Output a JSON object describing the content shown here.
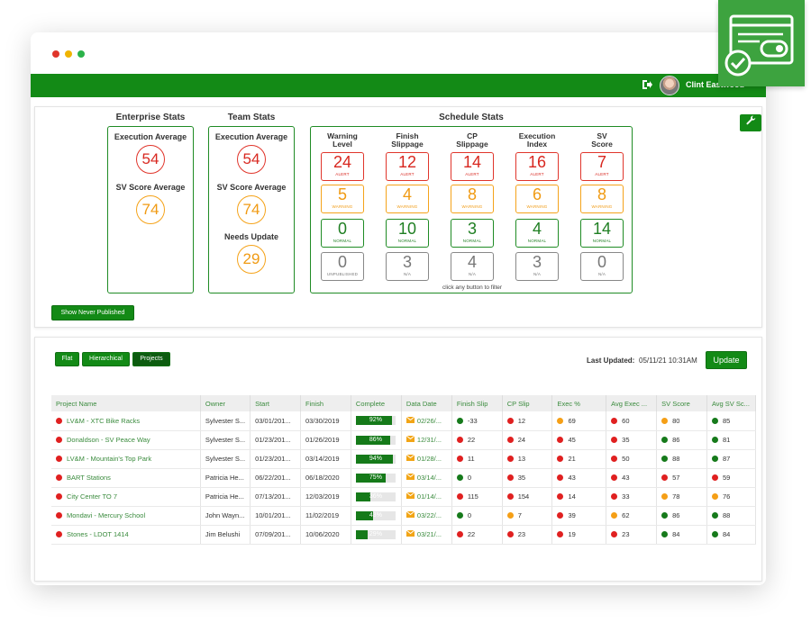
{
  "header": {
    "user_name": "Clint Eastwood"
  },
  "enterprise": {
    "title": "Enterprise Stats",
    "exec_label": "Execution Average",
    "exec_value": "54",
    "sv_label": "SV Score Average",
    "sv_value": "74"
  },
  "team": {
    "title": "Team Stats",
    "exec_label": "Execution Average",
    "exec_value": "54",
    "sv_label": "SV Score Average",
    "sv_value": "74",
    "needs_label": "Needs Update",
    "needs_value": "29"
  },
  "schedule": {
    "title": "Schedule Stats",
    "columns": [
      "Warning\nLevel",
      "Finish\nSlippage",
      "CP\nSlippage",
      "Execution\nIndex",
      "SV\nScore"
    ],
    "rows": [
      {
        "tag": "ALERT",
        "values": [
          "24",
          "12",
          "14",
          "16",
          "7"
        ]
      },
      {
        "tag": "WARNING",
        "values": [
          "5",
          "4",
          "8",
          "6",
          "8"
        ]
      },
      {
        "tag": "NORMAL",
        "values": [
          "0",
          "10",
          "3",
          "4",
          "14"
        ]
      },
      {
        "tag_first": "UNPUBLISHED",
        "tag": "N/A",
        "values": [
          "0",
          "3",
          "4",
          "3",
          "0"
        ]
      }
    ],
    "hint": "click any button to filter"
  },
  "buttons": {
    "never_published": "Show Never Published",
    "flat": "Flat",
    "hierarchical": "Hierarchical",
    "projects": "Projects",
    "update": "Update"
  },
  "last_updated": {
    "label": "Last Updated:",
    "value": "05/11/21 10:31AM"
  },
  "table": {
    "headers": [
      "Project Name",
      "Owner",
      "Start",
      "Finish",
      "Complete",
      "Data Date",
      "Finish Slip",
      "CP Slip",
      "Exec %",
      "Avg Exec ...",
      "SV Score",
      "Avg SV Sc..."
    ],
    "rows": [
      {
        "status": "red",
        "name": "LV&M - XTC Bike Racks",
        "owner": "Sylvester S...",
        "start": "03/01/201...",
        "finish": "03/30/2019",
        "complete": 92,
        "data_date": "02/26/...",
        "finish_slip": {
          "c": "green",
          "v": "-33"
        },
        "cp_slip": {
          "c": "red",
          "v": "12"
        },
        "exec": {
          "c": "orange",
          "v": "69"
        },
        "avg_exec": {
          "c": "red",
          "v": "60"
        },
        "sv": {
          "c": "orange",
          "v": "80"
        },
        "avg_sv": {
          "c": "green",
          "v": "85"
        }
      },
      {
        "status": "red",
        "name": "Donaldson - SV Peace Way",
        "owner": "Sylvester S...",
        "start": "01/23/201...",
        "finish": "01/26/2019",
        "complete": 86,
        "data_date": "12/31/...",
        "finish_slip": {
          "c": "red",
          "v": "22"
        },
        "cp_slip": {
          "c": "red",
          "v": "24"
        },
        "exec": {
          "c": "red",
          "v": "45"
        },
        "avg_exec": {
          "c": "red",
          "v": "35"
        },
        "sv": {
          "c": "green",
          "v": "86"
        },
        "avg_sv": {
          "c": "green",
          "v": "81"
        }
      },
      {
        "status": "red",
        "name": "LV&M - Mountain's Top Park",
        "owner": "Sylvester S...",
        "start": "01/23/201...",
        "finish": "03/14/2019",
        "complete": 94,
        "data_date": "01/28/...",
        "finish_slip": {
          "c": "red",
          "v": "11"
        },
        "cp_slip": {
          "c": "red",
          "v": "13"
        },
        "exec": {
          "c": "red",
          "v": "21"
        },
        "avg_exec": {
          "c": "red",
          "v": "50"
        },
        "sv": {
          "c": "green",
          "v": "88"
        },
        "avg_sv": {
          "c": "green",
          "v": "87"
        }
      },
      {
        "status": "red",
        "name": "BART Stations",
        "owner": "Patricia He...",
        "start": "06/22/201...",
        "finish": "06/18/2020",
        "complete": 75,
        "data_date": "03/14/...",
        "finish_slip": {
          "c": "green",
          "v": "0"
        },
        "cp_slip": {
          "c": "red",
          "v": "35"
        },
        "exec": {
          "c": "red",
          "v": "43"
        },
        "avg_exec": {
          "c": "red",
          "v": "43"
        },
        "sv": {
          "c": "red",
          "v": "57"
        },
        "avg_sv": {
          "c": "red",
          "v": "59"
        }
      },
      {
        "status": "red",
        "name": "City Center TO 7",
        "owner": "Patricia He...",
        "start": "07/13/201...",
        "finish": "12/03/2019",
        "complete": 36,
        "data_date": "01/14/...",
        "finish_slip": {
          "c": "red",
          "v": "115"
        },
        "cp_slip": {
          "c": "red",
          "v": "154"
        },
        "exec": {
          "c": "red",
          "v": "14"
        },
        "avg_exec": {
          "c": "red",
          "v": "33"
        },
        "sv": {
          "c": "orange",
          "v": "78"
        },
        "avg_sv": {
          "c": "orange",
          "v": "76"
        }
      },
      {
        "status": "red",
        "name": "Mondavi - Mercury School",
        "owner": "John Wayn...",
        "start": "10/01/201...",
        "finish": "11/02/2019",
        "complete": 43,
        "data_date": "03/22/...",
        "finish_slip": {
          "c": "green",
          "v": "0"
        },
        "cp_slip": {
          "c": "orange",
          "v": "7"
        },
        "exec": {
          "c": "red",
          "v": "39"
        },
        "avg_exec": {
          "c": "orange",
          "v": "62"
        },
        "sv": {
          "c": "green",
          "v": "86"
        },
        "avg_sv": {
          "c": "green",
          "v": "88"
        }
      },
      {
        "status": "red",
        "name": "Stones - LDOT 1414",
        "owner": "Jim Belushi",
        "start": "07/09/201...",
        "finish": "10/06/2020",
        "complete": 29,
        "data_date": "03/21/...",
        "finish_slip": {
          "c": "red",
          "v": "22"
        },
        "cp_slip": {
          "c": "red",
          "v": "23"
        },
        "exec": {
          "c": "red",
          "v": "19"
        },
        "avg_exec": {
          "c": "red",
          "v": "23"
        },
        "sv": {
          "c": "green",
          "v": "84"
        },
        "avg_sv": {
          "c": "green",
          "v": "84"
        }
      }
    ]
  },
  "colors": {
    "brand_green": "#138a16",
    "alert_red": "#e0352b",
    "warning_orange": "#f5a31a"
  },
  "icons": {
    "logout": "logout-icon",
    "settings": "wrench-icon",
    "data_date": "envelope-icon",
    "badge": "dashboard-check-icon"
  }
}
